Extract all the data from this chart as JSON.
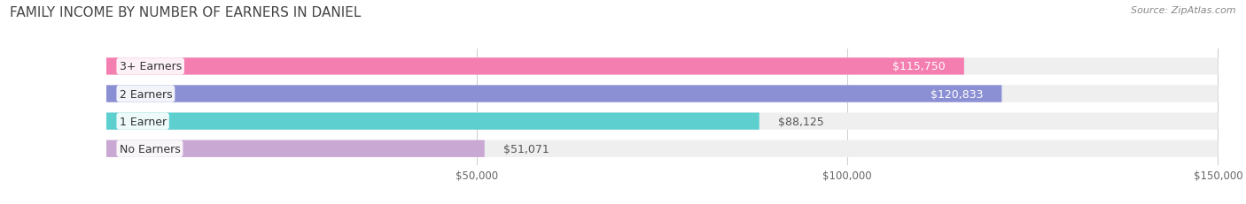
{
  "title": "FAMILY INCOME BY NUMBER OF EARNERS IN DANIEL",
  "source": "Source: ZipAtlas.com",
  "categories": [
    "No Earners",
    "1 Earner",
    "2 Earners",
    "3+ Earners"
  ],
  "values": [
    51071,
    88125,
    120833,
    115750
  ],
  "bar_colors": [
    "#c9a8d4",
    "#5ecfcf",
    "#8b8fd4",
    "#f47eb0"
  ],
  "bar_bg_color": "#efefef",
  "label_colors": [
    "#555555",
    "#555555",
    "#ffffff",
    "#ffffff"
  ],
  "value_labels": [
    "$51,071",
    "$88,125",
    "$120,833",
    "$115,750"
  ],
  "xlim": [
    0,
    150000
  ],
  "xticks": [
    50000,
    100000,
    150000
  ],
  "xtick_labels": [
    "$50,000",
    "$100,000",
    "$150,000"
  ],
  "background_color": "#ffffff",
  "title_fontsize": 11,
  "bar_label_fontsize": 9,
  "value_fontsize": 9,
  "source_fontsize": 8
}
